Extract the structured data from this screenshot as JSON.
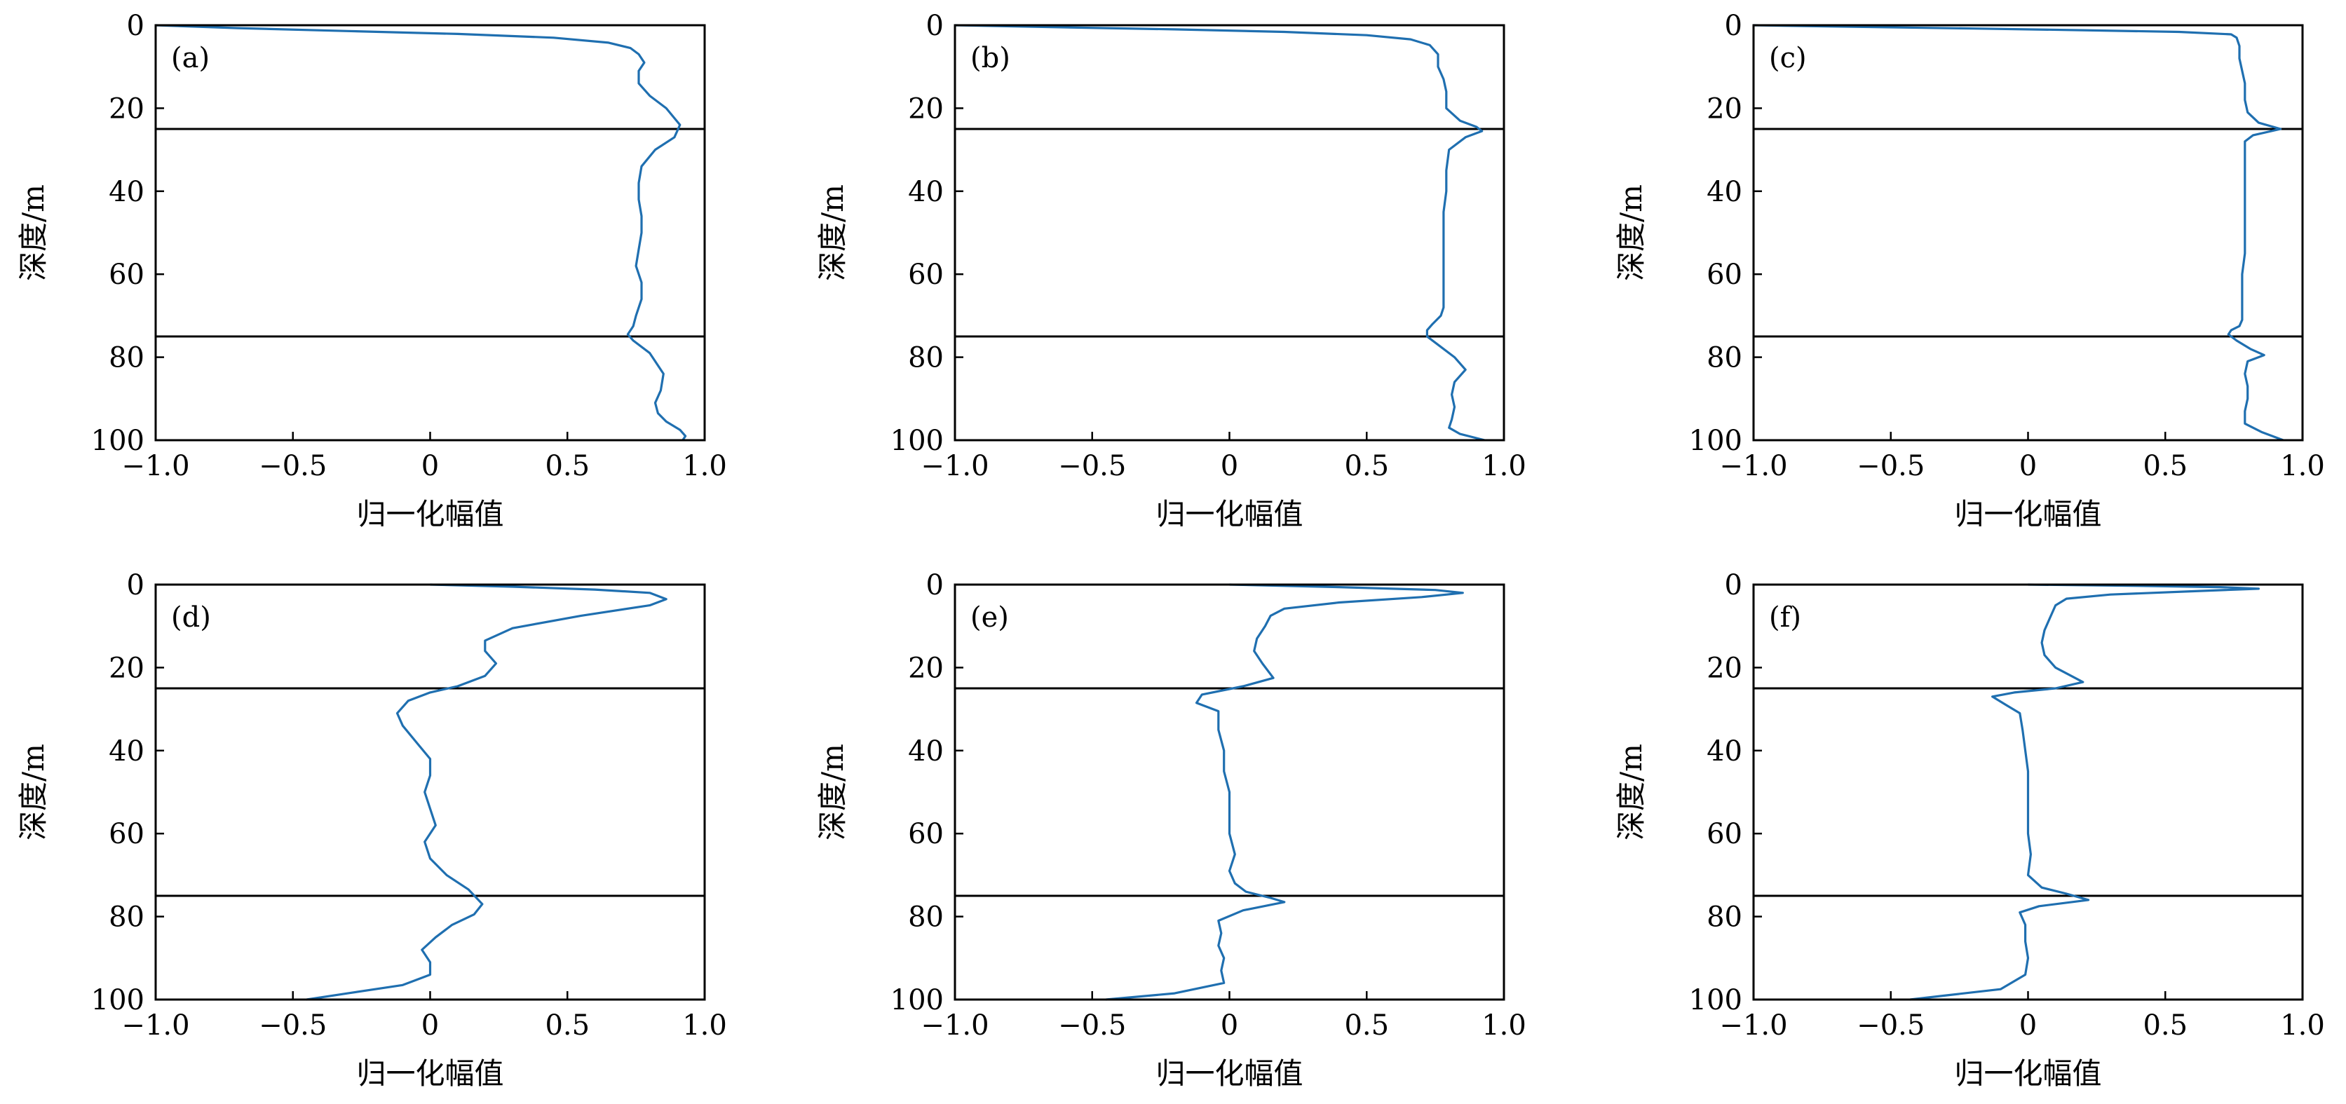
{
  "figure": {
    "line_color": "#1f6fb0",
    "boundary_color": "#000000"
  },
  "chart_data": [
    {
      "type": "line",
      "panel_label": "(a)",
      "xlabel": "归一化幅值",
      "ylabel": "深度/m",
      "xlim": [
        -1.0,
        1.0
      ],
      "ylim": [
        0,
        100
      ],
      "y_inverted": true,
      "xticks": [
        "−1.0",
        "−0.5",
        "0",
        "0.5",
        "1.0"
      ],
      "yticks": [
        "0",
        "20",
        "40",
        "60",
        "80",
        "100"
      ],
      "hlines": [
        25,
        75
      ],
      "series": [
        {
          "x": [
            -1.0,
            -0.7,
            -0.3,
            0.1,
            0.45,
            0.65,
            0.73,
            0.76,
            0.78,
            0.76,
            0.76,
            0.8,
            0.86,
            0.91,
            0.89,
            0.82,
            0.77,
            0.76,
            0.76,
            0.77,
            0.77,
            0.76,
            0.75,
            0.77,
            0.77,
            0.75,
            0.74,
            0.72,
            0.74,
            0.8,
            0.85,
            0.84,
            0.82,
            0.83,
            0.86,
            0.91,
            0.93,
            0.92
          ],
          "y": [
            0,
            0.7,
            1.4,
            2.1,
            3.0,
            4.2,
            5.5,
            7.0,
            9.0,
            11.0,
            14.0,
            17.0,
            20.0,
            24.0,
            27.0,
            30.0,
            34.0,
            38.0,
            42.0,
            46.0,
            50.0,
            54.0,
            58.0,
            62.0,
            66.0,
            70.0,
            72.5,
            74.5,
            76.0,
            79.0,
            84.0,
            88.0,
            91.0,
            93.5,
            95.5,
            97.5,
            99.0,
            100
          ]
        }
      ]
    },
    {
      "type": "line",
      "panel_label": "(b)",
      "xlabel": "归一化幅值",
      "ylabel": "深度/m",
      "xlim": [
        -1.0,
        1.0
      ],
      "ylim": [
        0,
        100
      ],
      "y_inverted": true,
      "xticks": [
        "−1.0",
        "−0.5",
        "0",
        "0.5",
        "1.0"
      ],
      "yticks": [
        "0",
        "20",
        "40",
        "60",
        "80",
        "100"
      ],
      "hlines": [
        25,
        75
      ],
      "series": [
        {
          "x": [
            -1.0,
            -0.6,
            -0.2,
            0.2,
            0.5,
            0.66,
            0.73,
            0.76,
            0.76,
            0.78,
            0.79,
            0.79,
            0.84,
            0.9,
            0.92,
            0.86,
            0.8,
            0.79,
            0.79,
            0.78,
            0.78,
            0.78,
            0.78,
            0.78,
            0.78,
            0.77,
            0.74,
            0.72,
            0.72,
            0.76,
            0.82,
            0.86,
            0.82,
            0.81,
            0.82,
            0.81,
            0.8,
            0.84,
            0.9,
            0.93
          ],
          "y": [
            0,
            0.5,
            1.0,
            1.6,
            2.4,
            3.4,
            4.8,
            7.0,
            10.0,
            13.0,
            16.0,
            20.0,
            23.0,
            24.5,
            25.5,
            27.0,
            30.0,
            35.0,
            40.0,
            45.0,
            50.0,
            55.0,
            60.0,
            65.0,
            68.0,
            70.0,
            72.0,
            73.5,
            75.0,
            77.0,
            80.0,
            83.0,
            86.0,
            89.0,
            92.0,
            95.0,
            97.0,
            98.5,
            99.5,
            100
          ]
        }
      ]
    },
    {
      "type": "line",
      "panel_label": "(c)",
      "xlabel": "归一化幅值",
      "ylabel": "深度/m",
      "xlim": [
        -1.0,
        1.0
      ],
      "ylim": [
        0,
        100
      ],
      "y_inverted": true,
      "xticks": [
        "−1.0",
        "−0.5",
        "0",
        "0.5",
        "1.0"
      ],
      "yticks": [
        "0",
        "20",
        "40",
        "60",
        "80",
        "100"
      ],
      "hlines": [
        25,
        75
      ],
      "series": [
        {
          "x": [
            -1.0,
            -0.6,
            -0.2,
            0.2,
            0.55,
            0.74,
            0.76,
            0.77,
            0.77,
            0.78,
            0.79,
            0.79,
            0.8,
            0.84,
            0.92,
            0.82,
            0.79,
            0.79,
            0.79,
            0.79,
            0.79,
            0.79,
            0.79,
            0.78,
            0.78,
            0.78,
            0.78,
            0.77,
            0.74,
            0.73,
            0.76,
            0.81,
            0.86,
            0.8,
            0.79,
            0.8,
            0.8,
            0.79,
            0.79,
            0.85,
            0.93
          ],
          "y": [
            0,
            0.4,
            0.8,
            1.2,
            1.6,
            2.2,
            3.0,
            5.0,
            8.0,
            11.0,
            14.0,
            18.0,
            21.0,
            23.5,
            25.0,
            26.5,
            28.0,
            32.0,
            36.0,
            40.0,
            45.0,
            50.0,
            55.0,
            60.0,
            65.0,
            69.0,
            71.0,
            72.5,
            73.5,
            74.5,
            76.0,
            78.0,
            79.5,
            81.0,
            84.0,
            87.0,
            90.0,
            93.0,
            96.0,
            98.0,
            100
          ]
        }
      ]
    },
    {
      "type": "line",
      "panel_label": "(d)",
      "xlabel": "归一化幅值",
      "ylabel": "深度/m",
      "xlim": [
        -1.0,
        1.0
      ],
      "ylim": [
        0,
        100
      ],
      "y_inverted": true,
      "xticks": [
        "−1.0",
        "−0.5",
        "0",
        "0.5",
        "1.0"
      ],
      "yticks": [
        "0",
        "20",
        "40",
        "60",
        "80",
        "100"
      ],
      "hlines": [
        25,
        75
      ],
      "series": [
        {
          "x": [
            0.0,
            0.3,
            0.6,
            0.8,
            0.86,
            0.8,
            0.55,
            0.3,
            0.2,
            0.2,
            0.24,
            0.2,
            0.1,
            0.0,
            -0.08,
            -0.12,
            -0.1,
            -0.05,
            0.0,
            0.0,
            -0.02,
            0.0,
            0.02,
            -0.02,
            0.0,
            0.06,
            0.14,
            0.19,
            0.16,
            0.08,
            0.02,
            -0.03,
            0.0,
            0.0,
            -0.1,
            -0.3,
            -0.45
          ],
          "y": [
            0,
            0.5,
            1.2,
            2.0,
            3.5,
            5.0,
            7.5,
            10.5,
            13.5,
            16.0,
            19.0,
            22.0,
            24.5,
            26.0,
            28.0,
            31.0,
            34.0,
            38.0,
            42.0,
            46.0,
            50.0,
            54.0,
            58.0,
            62.0,
            66.0,
            70.0,
            73.5,
            77.0,
            79.5,
            82.0,
            85.0,
            88.0,
            91.0,
            94.0,
            96.5,
            98.5,
            100
          ]
        }
      ]
    },
    {
      "type": "line",
      "panel_label": "(e)",
      "xlabel": "归一化幅值",
      "ylabel": "深度/m",
      "xlim": [
        -1.0,
        1.0
      ],
      "ylim": [
        0,
        100
      ],
      "y_inverted": true,
      "xticks": [
        "−1.0",
        "−0.5",
        "0",
        "0.5",
        "1.0"
      ],
      "yticks": [
        "0",
        "20",
        "40",
        "60",
        "80",
        "100"
      ],
      "hlines": [
        25,
        75
      ],
      "series": [
        {
          "x": [
            0.0,
            0.4,
            0.75,
            0.85,
            0.7,
            0.4,
            0.2,
            0.15,
            0.13,
            0.1,
            0.09,
            0.12,
            0.16,
            0.05,
            -0.1,
            -0.12,
            -0.04,
            -0.04,
            -0.02,
            -0.02,
            0.0,
            0.0,
            0.0,
            0.02,
            0.0,
            0.02,
            0.06,
            0.15,
            0.2,
            0.05,
            -0.04,
            -0.03,
            -0.04,
            -0.02,
            -0.03,
            -0.02,
            -0.2,
            -0.45
          ],
          "y": [
            0,
            0.6,
            1.3,
            2.0,
            3.0,
            4.3,
            5.8,
            7.5,
            10.0,
            13.0,
            16.0,
            19.0,
            22.5,
            24.5,
            26.5,
            28.5,
            30.5,
            35.0,
            40.0,
            45.0,
            50.0,
            55.0,
            60.0,
            65.0,
            69.0,
            72.0,
            74.0,
            75.5,
            76.5,
            78.5,
            81.0,
            84.0,
            87.0,
            90.0,
            93.0,
            96.0,
            98.5,
            100
          ]
        }
      ]
    },
    {
      "type": "line",
      "panel_label": "(f)",
      "xlabel": "归一化幅值",
      "ylabel": "深度/m",
      "xlim": [
        -1.0,
        1.0
      ],
      "ylim": [
        0,
        100
      ],
      "y_inverted": true,
      "xticks": [
        "−1.0",
        "−0.5",
        "0",
        "0.5",
        "1.0"
      ],
      "yticks": [
        "0",
        "20",
        "40",
        "60",
        "80",
        "100"
      ],
      "hlines": [
        25,
        75
      ],
      "series": [
        {
          "x": [
            0.0,
            0.4,
            0.7,
            0.84,
            0.6,
            0.3,
            0.14,
            0.1,
            0.08,
            0.06,
            0.05,
            0.06,
            0.1,
            0.2,
            0.1,
            -0.05,
            -0.13,
            -0.08,
            -0.03,
            -0.02,
            -0.01,
            0.0,
            0.0,
            0.0,
            0.0,
            0.01,
            0.0,
            0.05,
            0.14,
            0.22,
            0.04,
            -0.03,
            -0.01,
            -0.01,
            0.0,
            -0.01,
            -0.1,
            -0.3,
            -0.43
          ],
          "y": [
            0,
            0.3,
            0.6,
            1.0,
            1.6,
            2.4,
            3.4,
            5.0,
            8.0,
            11.0,
            14.0,
            17.0,
            20.0,
            23.5,
            25.0,
            26.0,
            27.0,
            29.0,
            31.0,
            35.0,
            40.0,
            45.0,
            50.0,
            55.0,
            60.0,
            65.0,
            70.0,
            73.0,
            74.5,
            76.0,
            77.5,
            79.0,
            82.0,
            86.0,
            90.0,
            94.0,
            97.5,
            99.0,
            100
          ]
        }
      ]
    }
  ]
}
